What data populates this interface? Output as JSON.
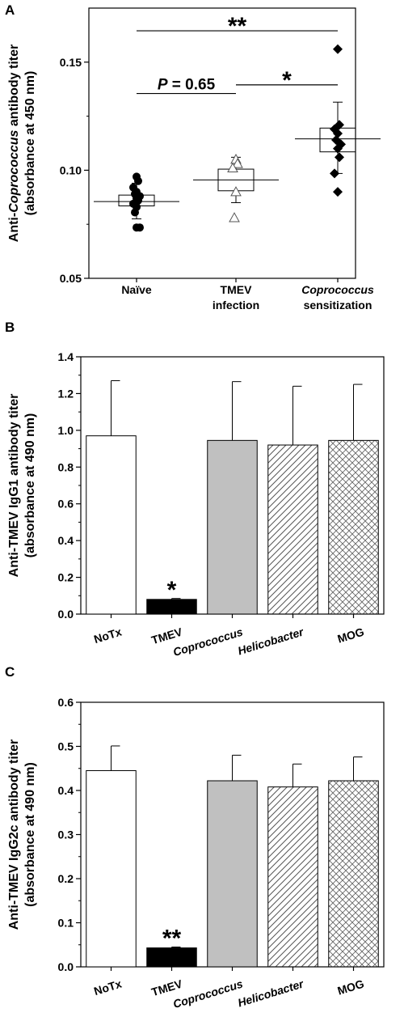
{
  "chart_data": [
    {
      "type": "scatter",
      "panel": "A",
      "ylabel_line1": [
        "Anti-",
        "Coprococcus",
        " antibody titer"
      ],
      "ylabel_line2": "(absorbance at 450 nm)",
      "ylim": [
        0.05,
        0.175
      ],
      "yticks": [
        "0.05",
        "0.10",
        "0.15"
      ],
      "categories": [
        {
          "line1": "Naïve",
          "line2": "",
          "italic": false
        },
        {
          "line1": "TMEV",
          "line2": "infection",
          "italic": false
        },
        {
          "line1": "Coprococcus",
          "line2": "sensitization",
          "italic": true
        }
      ],
      "groups": [
        {
          "marker": "filled-circle",
          "mean": 0.0855,
          "box": [
            0.0835,
            0.0885
          ],
          "whisker": [
            0.0775,
            0.094
          ],
          "points": [
            0.097,
            0.095,
            0.092,
            0.09,
            0.089,
            0.088,
            0.087,
            0.086,
            0.0845,
            0.083,
            0.0805,
            0.0735,
            0.0735
          ]
        },
        {
          "marker": "open-triangle",
          "mean": 0.0955,
          "box": [
            0.0905,
            0.1005
          ],
          "whisker": [
            0.085,
            0.106
          ],
          "points": [
            0.105,
            0.103,
            0.101,
            0.09,
            0.078
          ]
        },
        {
          "marker": "filled-diamond",
          "mean": 0.1145,
          "box": [
            0.1085,
            0.1195
          ],
          "whisker": [
            0.0985,
            0.1315
          ],
          "points": [
            0.156,
            0.121,
            0.119,
            0.117,
            0.114,
            0.112,
            0.11,
            0.106,
            0.0985,
            0.09
          ]
        }
      ],
      "comparisons": [
        {
          "from": 0,
          "to": 2,
          "y": 0.1645,
          "label": "**"
        },
        {
          "from": 0,
          "to": 1,
          "y": 0.1355,
          "label_prefix": "P",
          "label": " = 0.65"
        },
        {
          "from": 1,
          "to": 2,
          "y": 0.1395,
          "label": "*"
        }
      ]
    },
    {
      "type": "bar",
      "panel": "B",
      "ylabel_line1": "Anti-TMEV IgG1 antibody titer",
      "ylabel_line2": "(absorbance at 490 nm)",
      "ylim": [
        0,
        1.4
      ],
      "yticks": [
        "0.0",
        "0.2",
        "0.4",
        "0.6",
        "0.8",
        "1.0",
        "1.2",
        "1.4"
      ],
      "categories": [
        {
          "label": "NoTx",
          "italic": false
        },
        {
          "label": "TMEV",
          "italic": false
        },
        {
          "label": "Coprococcus",
          "italic": true
        },
        {
          "label": "Helicobacter",
          "italic": true
        },
        {
          "label": "MOG",
          "italic": false
        }
      ],
      "values": [
        0.97,
        0.08,
        0.945,
        0.92,
        0.945
      ],
      "errors": [
        0.3,
        0.005,
        0.32,
        0.32,
        0.305
      ],
      "fills": [
        "white",
        "black",
        "gray",
        "hatch",
        "crosshatch"
      ],
      "annotations": [
        {
          "index": 1,
          "label": "*"
        }
      ]
    },
    {
      "type": "bar",
      "panel": "C",
      "ylabel_line1": "Anti-TMEV IgG2c antibody titer",
      "ylabel_line2": "(absorbance at 490 nm)",
      "ylim": [
        0,
        0.6
      ],
      "yticks": [
        "0.0",
        "0.1",
        "0.2",
        "0.3",
        "0.4",
        "0.5",
        "0.6"
      ],
      "categories": [
        {
          "label": "NoTx",
          "italic": false
        },
        {
          "label": "TMEV",
          "italic": false
        },
        {
          "label": "Coprococcus",
          "italic": true
        },
        {
          "label": "Helicobacter",
          "italic": true
        },
        {
          "label": "MOG",
          "italic": false
        }
      ],
      "values": [
        0.445,
        0.043,
        0.422,
        0.408,
        0.422
      ],
      "errors": [
        0.056,
        0.002,
        0.058,
        0.052,
        0.054
      ],
      "fills": [
        "white",
        "black",
        "gray",
        "hatch",
        "crosshatch"
      ],
      "annotations": [
        {
          "index": 1,
          "label": "**"
        }
      ]
    }
  ],
  "colors": {
    "gray": "#c0c0c0",
    "black": "#000000",
    "white": "#ffffff"
  }
}
